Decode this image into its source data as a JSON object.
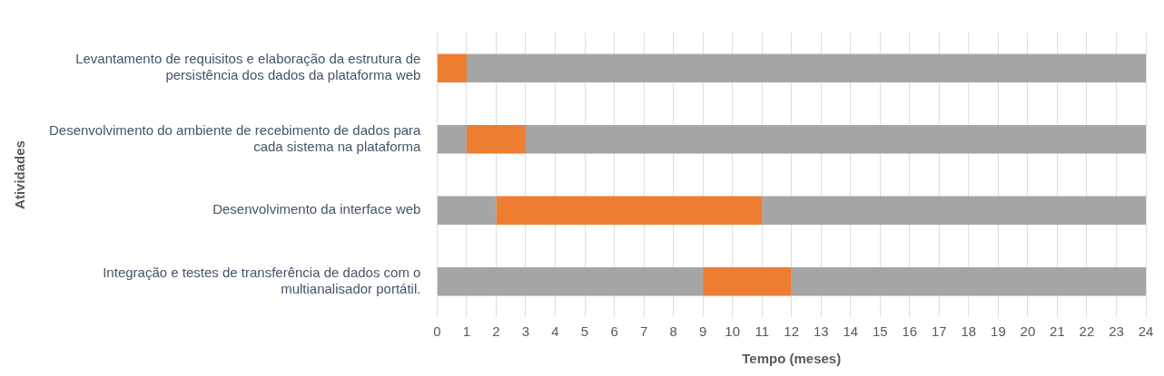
{
  "chart_data": {
    "type": "bar",
    "orientation": "horizontal",
    "stacked": true,
    "xlabel": "Tempo (meses)",
    "ylabel": "Atividades",
    "categories": [
      "Levantamento de requisitos e elaboração da estrutura de persistência dos dados da plataforma web",
      "Desenvolvimento do ambiente de recebimento de dados para cada sistema na plataforma",
      "Desenvolvimento da interface web",
      "Integração e testes de transferência de dados com o multianalisador portátil."
    ],
    "series": [
      {
        "color": "#a5a5a5",
        "values": [
          0,
          1,
          2,
          9
        ]
      },
      {
        "color": "#ed7d31",
        "values": [
          1,
          2,
          9,
          3
        ]
      },
      {
        "color": "#a5a5a5",
        "values": [
          23,
          21,
          13,
          12
        ]
      }
    ],
    "xlim": [
      0,
      24
    ],
    "xticks": [
      0,
      1,
      2,
      3,
      4,
      5,
      6,
      7,
      8,
      9,
      10,
      11,
      12,
      13,
      14,
      15,
      16,
      17,
      18,
      19,
      20,
      21,
      22,
      23,
      24
    ],
    "grid": "x",
    "legend": false
  }
}
